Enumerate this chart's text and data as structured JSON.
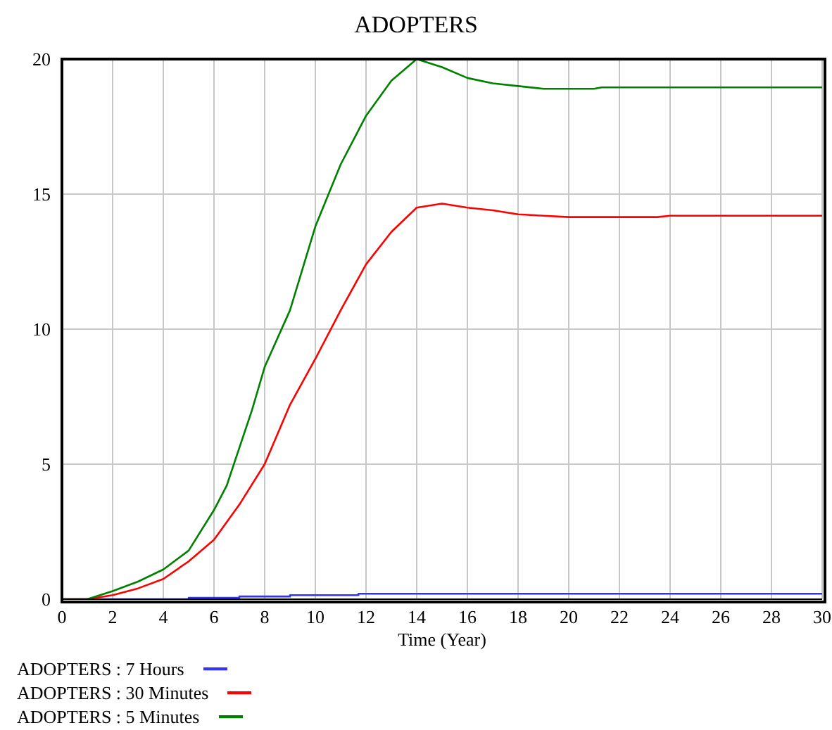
{
  "chart_data": {
    "type": "line",
    "title": "ADOPTERS",
    "xlabel": "Time (Year)",
    "xlim": [
      0,
      30
    ],
    "xticks": [
      0,
      2,
      4,
      6,
      8,
      10,
      12,
      14,
      16,
      18,
      20,
      22,
      24,
      26,
      28,
      30
    ],
    "ylim": [
      0,
      20
    ],
    "yticks": [
      0,
      5,
      10,
      15,
      20
    ],
    "grid": true,
    "legend": "bottom",
    "marker": "none",
    "series": [
      {
        "name": "ADOPTERS : 7 Hours",
        "color": "#3333ff",
        "type": "step",
        "x": [
          0,
          5,
          7,
          9,
          11.7,
          30
        ],
        "values": [
          0,
          0.05,
          0.1,
          0.15,
          0.2,
          0.2
        ]
      },
      {
        "name": "ADOPTERS : 30 Minutes",
        "color": "#ff0000",
        "x": [
          0,
          1,
          2,
          3,
          4,
          5,
          6,
          7,
          8,
          9,
          10,
          11,
          12,
          13,
          14,
          15,
          16,
          17,
          18,
          19,
          20,
          23.5,
          24,
          30
        ],
        "values": [
          0,
          0,
          0.15,
          0.4,
          0.75,
          1.4,
          2.2,
          3.5,
          5.0,
          7.2,
          8.9,
          10.7,
          12.4,
          13.6,
          14.5,
          14.65,
          14.5,
          14.4,
          14.25,
          14.2,
          14.15,
          14.15,
          14.2,
          14.2
        ]
      },
      {
        "name": "ADOPTERS : 5 Minutes",
        "color": "#008000",
        "x": [
          0,
          1,
          2,
          3,
          4,
          5,
          6,
          6.5,
          7,
          7.5,
          8,
          9,
          10,
          11,
          12,
          13,
          14,
          15,
          16,
          17,
          18,
          19,
          21,
          21.3,
          30
        ],
        "values": [
          0,
          0,
          0.3,
          0.65,
          1.1,
          1.8,
          3.3,
          4.2,
          5.6,
          7.0,
          8.6,
          10.7,
          13.8,
          16.1,
          17.9,
          19.2,
          20.0,
          19.7,
          19.3,
          19.1,
          19.0,
          18.9,
          18.9,
          18.95,
          18.95
        ]
      }
    ]
  }
}
